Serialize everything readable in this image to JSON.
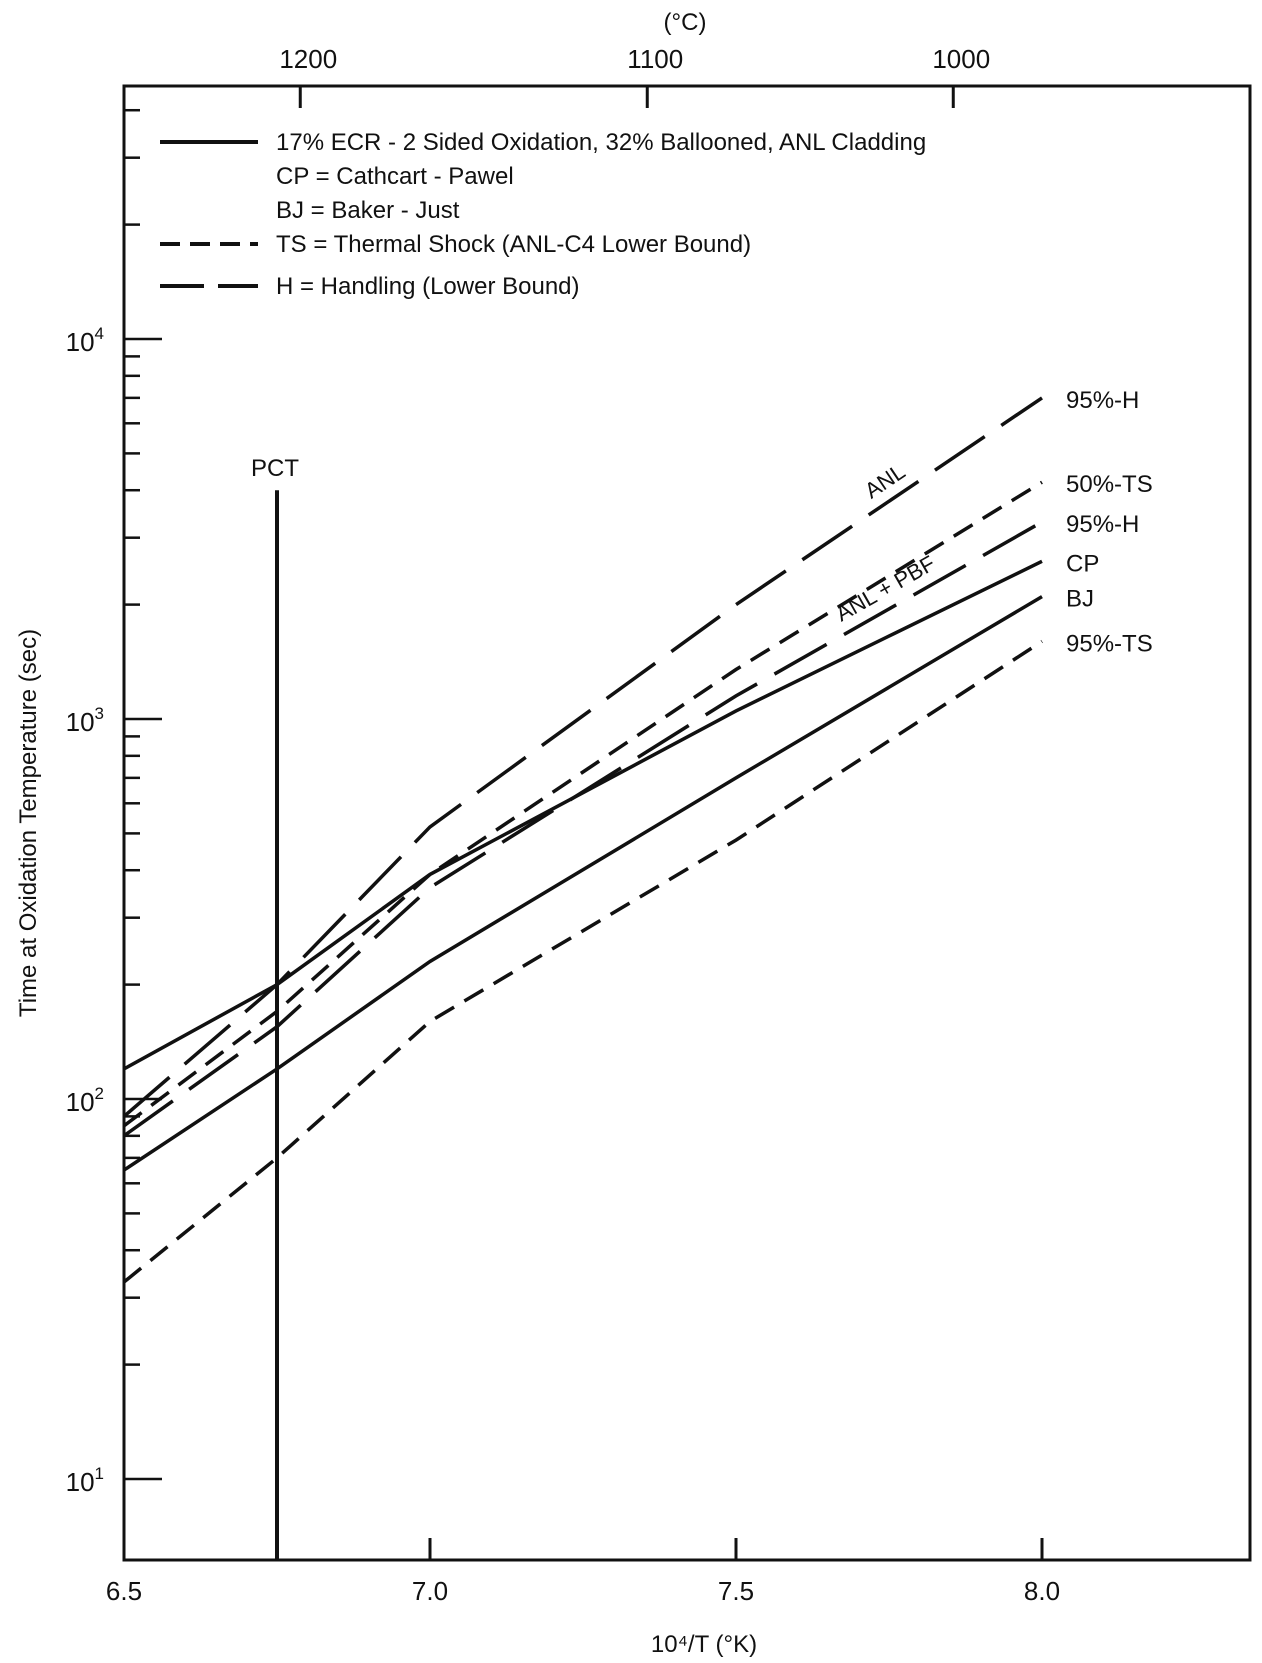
{
  "chart_data": {
    "type": "line",
    "xlabel": "10⁴/T (°K)",
    "ylabel": "Time at Oxidation Temperature (sec)",
    "top_axis_label": "(°C)",
    "xlim": [
      6.5,
      8.25
    ],
    "ylim": [
      10,
      50000
    ],
    "yscale": "log",
    "x_ticks": [
      {
        "value": 6.5,
        "label": "6.5"
      },
      {
        "value": 7.0,
        "label": "7.0"
      },
      {
        "value": 7.5,
        "label": "7.5"
      },
      {
        "value": 8.0,
        "label": "8.0"
      }
    ],
    "y_ticks": [
      {
        "value": 10,
        "base": "10",
        "exp": "1"
      },
      {
        "value": 100,
        "base": "10",
        "exp": "2"
      },
      {
        "value": 1000,
        "base": "10",
        "exp": "3"
      },
      {
        "value": 10000,
        "base": "10",
        "exp": "4"
      }
    ],
    "top_ticks": [
      {
        "x": 6.788,
        "label": "1200"
      },
      {
        "x": 7.355,
        "label": "1100"
      },
      {
        "x": 7.855,
        "label": "1000"
      }
    ],
    "legend": [
      {
        "style": "solid",
        "text": "17% ECR - 2 Sided Oxidation, 32% Ballooned, ANL Cladding"
      },
      {
        "style": "none",
        "text": "CP = Cathcart - Pawel"
      },
      {
        "style": "none",
        "text": "BJ = Baker - Just"
      },
      {
        "style": "short-dash",
        "text": "TS = Thermal Shock (ANL-C4 Lower Bound)"
      },
      {
        "style": "long-dash",
        "text": "H = Handling (Lower Bound)"
      }
    ],
    "reference_line": {
      "label": "PCT",
      "x": 6.75,
      "y_top": 4000
    },
    "series": [
      {
        "name": "95%-H",
        "inline_label": "ANL",
        "style": "long-dash",
        "x": [
          6.5,
          6.75,
          7.0,
          7.5,
          8.0
        ],
        "y": [
          90,
          200,
          520,
          2000,
          7000
        ]
      },
      {
        "name": "50%-TS",
        "style": "short-dash",
        "x": [
          6.5,
          6.75,
          7.0,
          7.5,
          8.0
        ],
        "y": [
          85,
          170,
          390,
          1350,
          4200
        ]
      },
      {
        "name": "95%-H",
        "inline_label": "ANL + PBF",
        "style": "long-dash",
        "x": [
          6.5,
          6.75,
          7.0,
          7.5,
          8.0
        ],
        "y": [
          80,
          155,
          360,
          1150,
          3300
        ]
      },
      {
        "name": "CP",
        "style": "solid",
        "x": [
          6.5,
          6.75,
          7.0,
          7.5,
          8.0
        ],
        "y": [
          120,
          200,
          390,
          1050,
          2600
        ]
      },
      {
        "name": "BJ",
        "style": "solid",
        "x": [
          6.5,
          6.75,
          7.0,
          7.5,
          8.0
        ],
        "y": [
          65,
          120,
          230,
          700,
          2100
        ]
      },
      {
        "name": "95%-TS",
        "style": "short-dash",
        "x": [
          6.5,
          6.75,
          7.0,
          7.5,
          8.0
        ],
        "y": [
          33,
          70,
          160,
          480,
          1600
        ]
      }
    ]
  }
}
